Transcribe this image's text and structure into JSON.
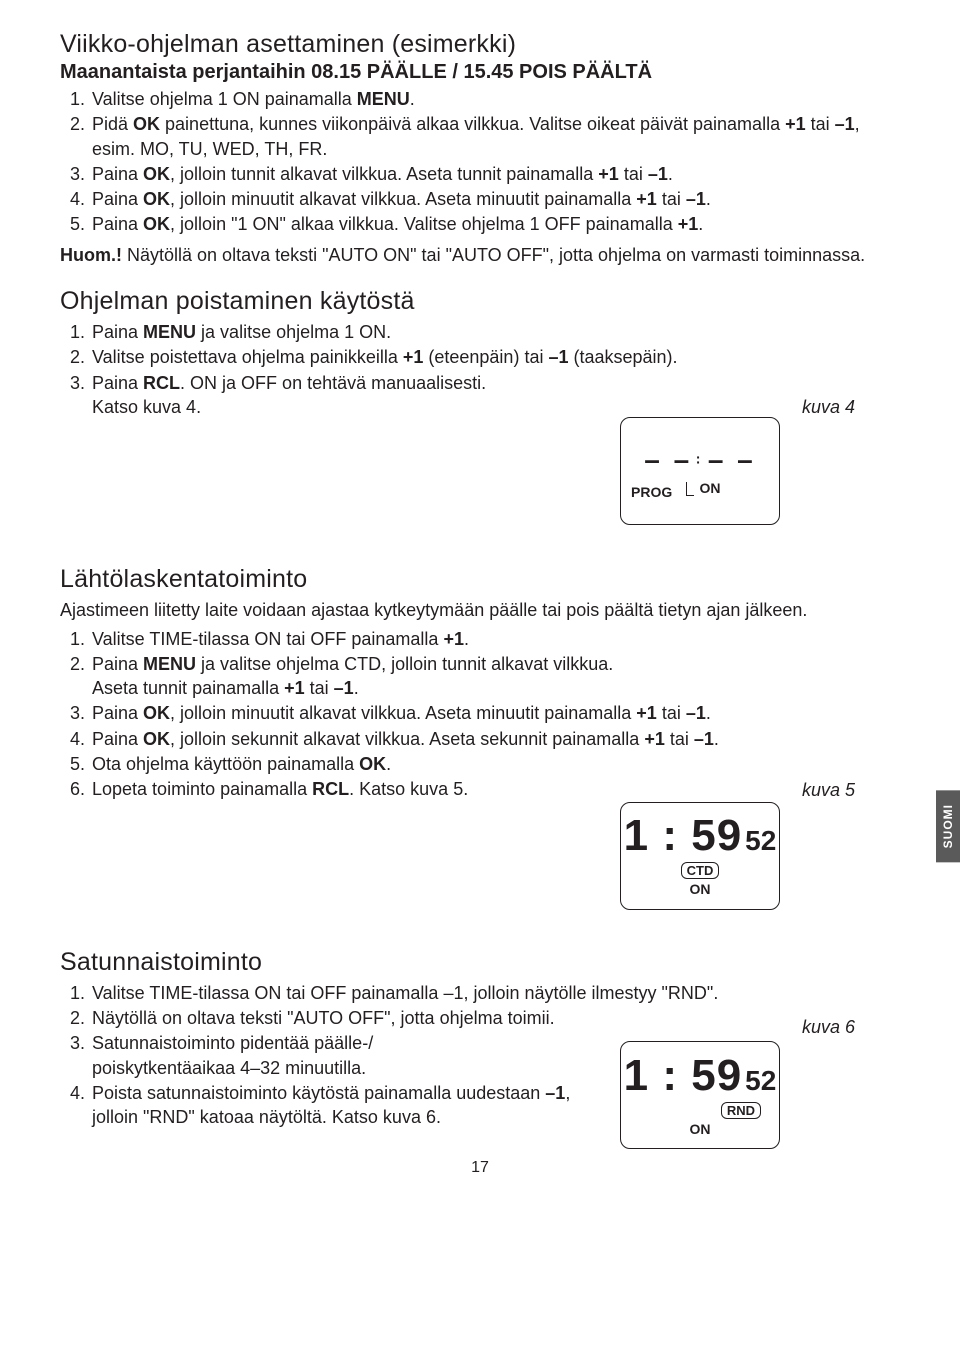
{
  "side_tab": "SUOMI",
  "page_number": "17",
  "section1": {
    "heading": "Viikko-ohjelman asettaminen (esimerkki)",
    "subheading": "Maanantaista perjantaihin 08.15 PÄÄLLE / 15.45 POIS PÄÄLTÄ",
    "items": [
      "Valitse ohjelma 1 ON painamalla <b>MENU</b>.",
      "Pidä <b>OK</b> painettuna, kunnes viikonpäivä alkaa vilkkua. Valitse oikeat päivät painamalla <b>+1</b> tai <b>–1</b>, esim. MO, TU, WED, TH, FR.",
      "Paina <b>OK</b>, jolloin tunnit alkavat vilkkua. Aseta tunnit painamalla <b>+1</b> tai <b>–1</b>.",
      "Paina <b>OK</b>, jolloin minuutit alkavat vilkkua. Aseta minuutit painamalla <b>+1</b> tai <b>–1</b>.",
      "Paina <b>OK</b>, jolloin \"1 ON\" alkaa vilkkua. Valitse ohjelma 1 OFF painamalla <b>+1</b>."
    ],
    "note": "<b>Huom.!</b> Näytöllä on oltava teksti \"AUTO ON\" tai \"AUTO OFF\", jotta ohjelma on varmasti toiminnassa."
  },
  "section2": {
    "heading": "Ohjelman poistaminen käytöstä",
    "items": [
      "Paina <b>MENU</b> ja valitse ohjelma 1 ON.",
      "Valitse poistettava ohjelma painikkeilla <b>+1</b> (eteenpäin) tai <b>–1</b> (taaksepäin).",
      "Paina <b>RCL</b>. ON ja OFF on tehtävä manuaalisesti.<br>Katso kuva 4."
    ],
    "fig_label": "kuva 4",
    "lcd": {
      "prog": "PROG",
      "on": "ON"
    }
  },
  "section3": {
    "heading": "Lähtölaskentatoiminto",
    "intro": "Ajastimeen liitetty laite voidaan ajastaa kytkeytymään päälle tai pois päältä tietyn ajan jälkeen.",
    "items": [
      "Valitse TIME-tilassa ON tai OFF painamalla <b>+1</b>.",
      "Paina <b>MENU</b> ja valitse ohjelma CTD, jolloin tunnit alkavat vilkkua.<br>Aseta tunnit painamalla <b>+1</b> tai <b>–1</b>.",
      "Paina <b>OK</b>, jolloin minuutit alkavat vilkkua. Aseta minuutit painamalla <b>+1</b> tai <b>–1</b>.",
      "Paina <b>OK</b>, jolloin sekunnit alkavat vilkkua. Aseta sekunnit painamalla <b>+1</b> tai <b>–1</b>.",
      "Ota ohjelma käyttöön painamalla <b>OK</b>.",
      "Lopeta toiminto painamalla <b>RCL</b>. Katso kuva 5."
    ],
    "fig_label": "kuva 5",
    "lcd": {
      "time": "1 : 59",
      "sec": "52",
      "tag": "CTD",
      "on": "ON"
    }
  },
  "section4": {
    "heading": "Satunnaistoiminto",
    "items": [
      "Valitse TIME-tilassa ON tai OFF painamalla –1, jolloin näytölle ilmestyy \"RND\".",
      "Näytöllä on oltava teksti \"AUTO OFF\", jotta ohjelma toimii.",
      "Satunnaistoiminto pidentää päälle-/<br>poiskytkentäaikaa 4–32 minuutilla.",
      "Poista satunnaistoiminto käytöstä painamalla uudestaan <b>–1</b>, jolloin \"RND\" katoaa näytöltä. Katso kuva 6."
    ],
    "fig_label": "kuva 6",
    "lcd": {
      "time": "1 : 59",
      "sec": "52",
      "tag": "RND",
      "on": "ON"
    }
  }
}
